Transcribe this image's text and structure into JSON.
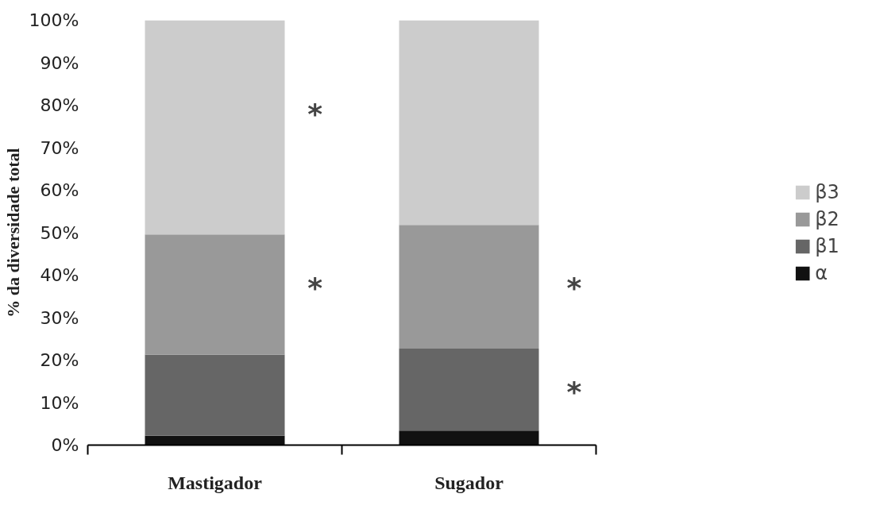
{
  "chart_data": {
    "type": "bar",
    "stacked": true,
    "ylabel": "% da diversidade total",
    "categories": [
      "Mastigador",
      "Sugador"
    ],
    "series": [
      {
        "name": "α",
        "color": "#111111",
        "values": [
          2.2,
          3.4
        ]
      },
      {
        "name": "β1",
        "color": "#666666",
        "values": [
          19.1,
          19.3
        ]
      },
      {
        "name": "β2",
        "color": "#999999",
        "values": [
          28.3,
          29.1
        ]
      },
      {
        "name": "β3",
        "color": "#cccccc",
        "values": [
          50.4,
          48.2
        ]
      }
    ],
    "ylim": [
      0,
      100
    ],
    "yticks": [
      {
        "value": 0,
        "label": "0%"
      },
      {
        "value": 10,
        "label": "10%"
      },
      {
        "value": 20,
        "label": "20%"
      },
      {
        "value": 30,
        "label": "30%"
      },
      {
        "value": 40,
        "label": "40%"
      },
      {
        "value": 50,
        "label": "50%"
      },
      {
        "value": 60,
        "label": "60%"
      },
      {
        "value": 70,
        "label": "70%"
      },
      {
        "value": 80,
        "label": "80%"
      },
      {
        "value": 90,
        "label": "90%"
      },
      {
        "value": 100,
        "label": "100%"
      }
    ],
    "grid": false,
    "legend": "right",
    "annotations": [
      "*",
      "*",
      "*",
      "*"
    ]
  }
}
